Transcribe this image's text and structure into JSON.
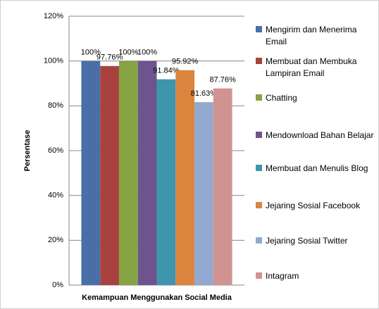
{
  "chart_data": {
    "type": "bar",
    "categories": [
      "Kemampuan Menggunakan Social Media"
    ],
    "ylabel": "Persentase",
    "ylim": [
      0,
      120
    ],
    "yticks": [
      {
        "value": 0,
        "label": "0%"
      },
      {
        "value": 20,
        "label": "20%"
      },
      {
        "value": 40,
        "label": "40%"
      },
      {
        "value": 60,
        "label": "60%"
      },
      {
        "value": 80,
        "label": "80%"
      },
      {
        "value": 100,
        "label": "100%"
      },
      {
        "value": 120,
        "label": "120%"
      }
    ],
    "grid": true,
    "legend": "right",
    "series": [
      {
        "name": "Mengirim dan Menerima Email",
        "color": "#4a6fa8",
        "values": [
          100
        ],
        "value_labels": [
          "100%"
        ]
      },
      {
        "name": "Membuat dan Membuka Lampiran Email",
        "color": "#a8423f",
        "values": [
          97.76
        ],
        "value_labels": [
          "97.76%"
        ]
      },
      {
        "name": "Chatting",
        "color": "#86a443",
        "values": [
          100
        ],
        "value_labels": [
          "100%"
        ]
      },
      {
        "name": "Mendownload Bahan Belajar",
        "color": "#6e548d",
        "values": [
          100
        ],
        "value_labels": [
          "100%"
        ]
      },
      {
        "name": "Membuat dan Menulis Blog",
        "color": "#3d96ae",
        "values": [
          91.84
        ],
        "value_labels": [
          "91.84%"
        ]
      },
      {
        "name": "Jejaring Sosial Facebook",
        "color": "#db843d",
        "values": [
          95.92
        ],
        "value_labels": [
          "95.92%"
        ]
      },
      {
        "name": "Jejaring Sosial Twitter",
        "color": "#93a9cf",
        "values": [
          81.63
        ],
        "value_labels": [
          "81.63%"
        ]
      },
      {
        "name": "Intagram",
        "color": "#d19392",
        "values": [
          87.76
        ],
        "value_labels": [
          "87.76%"
        ]
      }
    ]
  }
}
